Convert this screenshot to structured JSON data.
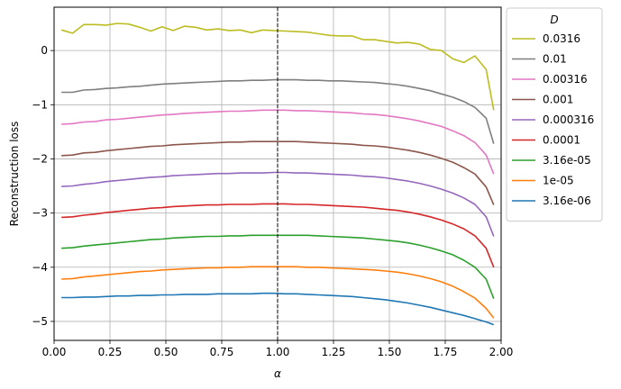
{
  "chart_data": {
    "type": "line",
    "title": "",
    "xlabel": "α",
    "ylabel": "Reconstruction loss",
    "xlim": [
      0.0,
      2.0
    ],
    "ylim": [
      -5.35,
      0.8
    ],
    "xticks": [
      0.0,
      0.25,
      0.5,
      0.75,
      1.0,
      1.25,
      1.5,
      1.75,
      2.0
    ],
    "xtick_labels": [
      "0.00",
      "0.25",
      "0.50",
      "0.75",
      "1.00",
      "1.25",
      "1.50",
      "1.75",
      "2.00"
    ],
    "yticks": [
      0,
      -1,
      -2,
      -3,
      -4,
      -5
    ],
    "ytick_labels": [
      "0",
      "−1",
      "−2",
      "−3",
      "−4",
      "−5"
    ],
    "grid": true,
    "vline": {
      "x": 1.0,
      "style": "dashed",
      "color": "#000000"
    },
    "legend": {
      "title": "D",
      "placement": "outside-right-top"
    },
    "x": [
      0.033,
      0.083,
      0.133,
      0.183,
      0.233,
      0.283,
      0.333,
      0.383,
      0.433,
      0.483,
      0.533,
      0.583,
      0.633,
      0.683,
      0.733,
      0.783,
      0.833,
      0.883,
      0.933,
      0.983,
      1.033,
      1.083,
      1.133,
      1.183,
      1.233,
      1.283,
      1.333,
      1.383,
      1.433,
      1.483,
      1.533,
      1.583,
      1.633,
      1.683,
      1.733,
      1.783,
      1.833,
      1.883,
      1.933,
      1.967
    ],
    "series": [
      {
        "name": "0.0316",
        "color": "#bcbd22",
        "values": [
          0.38,
          0.32,
          0.48,
          0.48,
          0.47,
          0.5,
          0.49,
          0.43,
          0.36,
          0.44,
          0.37,
          0.45,
          0.43,
          0.38,
          0.4,
          0.37,
          0.38,
          0.33,
          0.38,
          0.37,
          0.36,
          0.35,
          0.34,
          0.31,
          0.28,
          0.27,
          0.27,
          0.2,
          0.2,
          0.17,
          0.14,
          0.15,
          0.12,
          0.02,
          0.0,
          -0.15,
          -0.22,
          -0.1,
          -0.35,
          -1.1
        ]
      },
      {
        "name": "0.01",
        "color": "#7f7f7f",
        "values": [
          -0.77,
          -0.77,
          -0.73,
          -0.72,
          -0.7,
          -0.69,
          -0.67,
          -0.66,
          -0.64,
          -0.62,
          -0.61,
          -0.6,
          -0.59,
          -0.58,
          -0.57,
          -0.56,
          -0.56,
          -0.55,
          -0.55,
          -0.54,
          -0.54,
          -0.54,
          -0.55,
          -0.55,
          -0.56,
          -0.56,
          -0.57,
          -0.58,
          -0.59,
          -0.61,
          -0.63,
          -0.66,
          -0.7,
          -0.74,
          -0.8,
          -0.86,
          -0.94,
          -1.05,
          -1.25,
          -1.72
        ]
      },
      {
        "name": "0.00316",
        "color": "#e377c2",
        "values": [
          -1.36,
          -1.35,
          -1.32,
          -1.31,
          -1.28,
          -1.27,
          -1.25,
          -1.23,
          -1.21,
          -1.19,
          -1.18,
          -1.16,
          -1.15,
          -1.14,
          -1.13,
          -1.12,
          -1.12,
          -1.11,
          -1.1,
          -1.1,
          -1.1,
          -1.11,
          -1.11,
          -1.12,
          -1.13,
          -1.14,
          -1.15,
          -1.17,
          -1.18,
          -1.2,
          -1.23,
          -1.26,
          -1.3,
          -1.35,
          -1.4,
          -1.48,
          -1.57,
          -1.7,
          -1.93,
          -2.28
        ]
      },
      {
        "name": "0.001",
        "color": "#8c564b",
        "values": [
          -1.94,
          -1.93,
          -1.89,
          -1.88,
          -1.85,
          -1.83,
          -1.81,
          -1.79,
          -1.77,
          -1.76,
          -1.74,
          -1.73,
          -1.72,
          -1.71,
          -1.7,
          -1.69,
          -1.69,
          -1.68,
          -1.68,
          -1.68,
          -1.68,
          -1.68,
          -1.69,
          -1.7,
          -1.71,
          -1.72,
          -1.73,
          -1.75,
          -1.76,
          -1.78,
          -1.81,
          -1.84,
          -1.88,
          -1.93,
          -1.99,
          -2.06,
          -2.16,
          -2.28,
          -2.52,
          -2.85
        ]
      },
      {
        "name": "0.000316",
        "color": "#9467bd",
        "values": [
          -2.51,
          -2.5,
          -2.47,
          -2.45,
          -2.42,
          -2.4,
          -2.38,
          -2.36,
          -2.34,
          -2.33,
          -2.31,
          -2.3,
          -2.29,
          -2.28,
          -2.27,
          -2.27,
          -2.26,
          -2.26,
          -2.26,
          -2.25,
          -2.25,
          -2.26,
          -2.26,
          -2.27,
          -2.28,
          -2.29,
          -2.3,
          -2.32,
          -2.33,
          -2.35,
          -2.38,
          -2.41,
          -2.45,
          -2.5,
          -2.56,
          -2.63,
          -2.72,
          -2.84,
          -3.07,
          -3.43
        ]
      },
      {
        "name": "0.0001",
        "color": "#d62728",
        "values": [
          -3.08,
          -3.07,
          -3.04,
          -3.02,
          -2.99,
          -2.97,
          -2.95,
          -2.93,
          -2.91,
          -2.9,
          -2.88,
          -2.87,
          -2.86,
          -2.85,
          -2.85,
          -2.84,
          -2.84,
          -2.84,
          -2.83,
          -2.83,
          -2.83,
          -2.84,
          -2.84,
          -2.85,
          -2.86,
          -2.87,
          -2.88,
          -2.89,
          -2.91,
          -2.93,
          -2.95,
          -2.98,
          -3.02,
          -3.07,
          -3.13,
          -3.2,
          -3.29,
          -3.42,
          -3.65,
          -4.0
        ]
      },
      {
        "name": "3.16e-05",
        "color": "#2ca02c",
        "values": [
          -3.65,
          -3.64,
          -3.61,
          -3.59,
          -3.57,
          -3.55,
          -3.53,
          -3.51,
          -3.49,
          -3.48,
          -3.46,
          -3.45,
          -3.44,
          -3.43,
          -3.43,
          -3.42,
          -3.42,
          -3.41,
          -3.41,
          -3.41,
          -3.41,
          -3.41,
          -3.41,
          -3.42,
          -3.43,
          -3.44,
          -3.45,
          -3.46,
          -3.48,
          -3.5,
          -3.52,
          -3.55,
          -3.59,
          -3.64,
          -3.7,
          -3.77,
          -3.87,
          -4.0,
          -4.22,
          -4.58
        ]
      },
      {
        "name": "1e-05",
        "color": "#ff7f0e",
        "values": [
          -4.22,
          -4.21,
          -4.18,
          -4.16,
          -4.14,
          -4.12,
          -4.1,
          -4.08,
          -4.07,
          -4.05,
          -4.04,
          -4.03,
          -4.02,
          -4.01,
          -4.01,
          -4.0,
          -4.0,
          -3.99,
          -3.99,
          -3.99,
          -3.99,
          -3.99,
          -4.0,
          -4.0,
          -4.01,
          -4.02,
          -4.03,
          -4.04,
          -4.05,
          -4.07,
          -4.09,
          -4.12,
          -4.16,
          -4.21,
          -4.27,
          -4.35,
          -4.45,
          -4.57,
          -4.76,
          -4.94
        ]
      },
      {
        "name": "3.16e-06",
        "color": "#1f77b4",
        "values": [
          -4.56,
          -4.56,
          -4.55,
          -4.55,
          -4.54,
          -4.53,
          -4.53,
          -4.52,
          -4.52,
          -4.51,
          -4.51,
          -4.5,
          -4.5,
          -4.5,
          -4.49,
          -4.49,
          -4.49,
          -4.49,
          -4.48,
          -4.48,
          -4.49,
          -4.49,
          -4.5,
          -4.51,
          -4.52,
          -4.53,
          -4.54,
          -4.56,
          -4.58,
          -4.6,
          -4.63,
          -4.66,
          -4.7,
          -4.74,
          -4.79,
          -4.84,
          -4.89,
          -4.95,
          -5.01,
          -5.06
        ]
      }
    ]
  }
}
